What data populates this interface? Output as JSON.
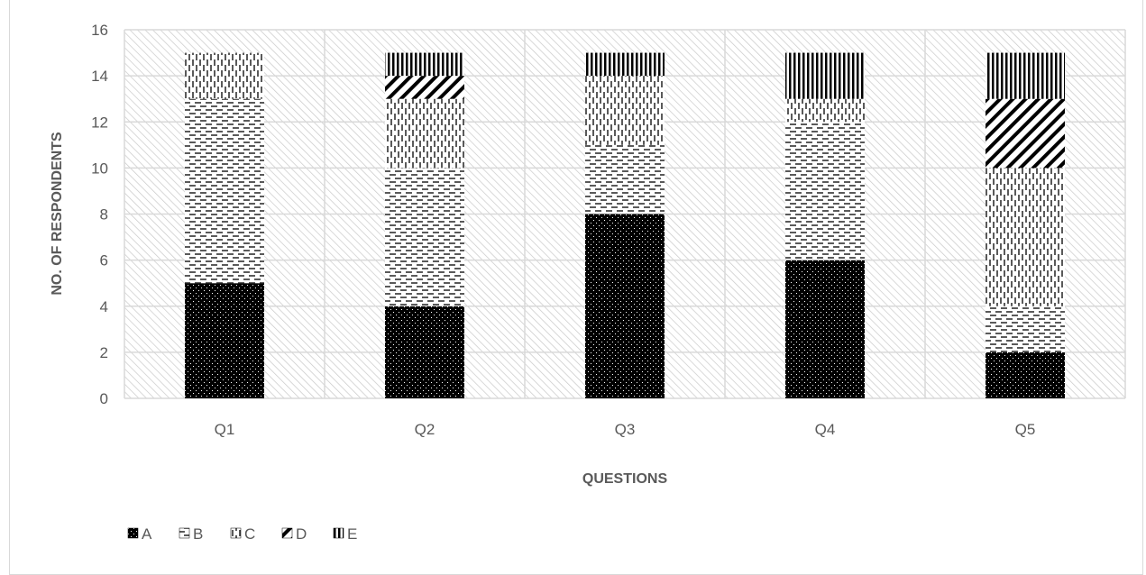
{
  "chart_data": {
    "type": "bar",
    "stacked": true,
    "categories": [
      "Q1",
      "Q2",
      "Q3",
      "Q4",
      "Q5"
    ],
    "series": [
      {
        "name": "A",
        "values": [
          5,
          4,
          8,
          6,
          2
        ],
        "pattern": "dots-dark",
        "color": "#000000"
      },
      {
        "name": "B",
        "values": [
          8,
          6,
          3,
          6,
          2
        ],
        "pattern": "dashes-horizontal",
        "color": "#000000"
      },
      {
        "name": "C",
        "values": [
          2,
          3,
          3,
          1,
          6
        ],
        "pattern": "dashes-vertical",
        "color": "#000000"
      },
      {
        "name": "D",
        "values": [
          0,
          1,
          0,
          0,
          3
        ],
        "pattern": "wide-diagonal",
        "color": "#000000"
      },
      {
        "name": "E",
        "values": [
          0,
          1,
          1,
          2,
          2
        ],
        "pattern": "vertical-stripes",
        "color": "#000000"
      }
    ],
    "xlabel": "QUESTIONS",
    "ylabel": "NO. OF RESPONDENTS",
    "ylim": [
      0,
      16
    ],
    "yticks": [
      0,
      2,
      4,
      6,
      8,
      10,
      12,
      14,
      16
    ],
    "grid": true,
    "plot_background": "light-diagonal-hatch",
    "legend_position": "bottom-left"
  }
}
